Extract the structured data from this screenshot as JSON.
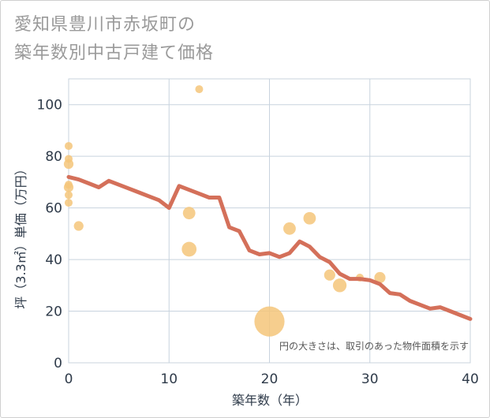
{
  "chart_data": {
    "type": "scatter+line",
    "title_lines": [
      "愛知県豊川市赤坂町の",
      "築年数別中古戸建て価格"
    ],
    "xlabel": "築年数（年）",
    "ylabel": "坪（3.3㎡）単価（万円）",
    "xlim": [
      0,
      40
    ],
    "ylim": [
      0,
      110
    ],
    "x_ticks": [
      0,
      10,
      20,
      30,
      40
    ],
    "y_ticks": [
      0,
      20,
      40,
      60,
      80,
      100
    ],
    "note": "円の大きさは、取引のあった物件面積を示す",
    "colors": {
      "bubble": "#f5c57a",
      "line": "#d4705a",
      "grid": "#c8d3de"
    },
    "bubbles": [
      {
        "x": 0,
        "y": 84,
        "s": 1
      },
      {
        "x": 0,
        "y": 79,
        "s": 1
      },
      {
        "x": 0,
        "y": 77,
        "s": 1.5
      },
      {
        "x": 0,
        "y": 69,
        "s": 1
      },
      {
        "x": 0,
        "y": 68,
        "s": 1.5
      },
      {
        "x": 0,
        "y": 65,
        "s": 1
      },
      {
        "x": 0,
        "y": 62,
        "s": 1
      },
      {
        "x": 1,
        "y": 53,
        "s": 1.5
      },
      {
        "x": 12,
        "y": 58,
        "s": 2.5
      },
      {
        "x": 12,
        "y": 44,
        "s": 3.5
      },
      {
        "x": 13,
        "y": 106,
        "s": 1
      },
      {
        "x": 20,
        "y": 16,
        "s": 8
      },
      {
        "x": 22,
        "y": 52,
        "s": 2.5
      },
      {
        "x": 24,
        "y": 56,
        "s": 2.5
      },
      {
        "x": 26,
        "y": 34,
        "s": 2
      },
      {
        "x": 27,
        "y": 30,
        "s": 3
      },
      {
        "x": 29,
        "y": 33,
        "s": 1
      },
      {
        "x": 31,
        "y": 33,
        "s": 2
      }
    ],
    "trend": {
      "x": [
        0,
        1,
        2,
        3,
        4,
        5,
        6,
        7,
        8,
        9,
        10,
        11,
        12,
        13,
        14,
        15,
        16,
        17,
        18,
        19,
        20,
        21,
        22,
        23,
        24,
        25,
        26,
        27,
        28,
        29,
        30,
        31,
        32,
        33,
        34,
        35,
        36,
        37,
        38,
        39,
        40
      ],
      "y": [
        72,
        71,
        69.5,
        68,
        70.5,
        69,
        67.5,
        66,
        64.5,
        63,
        60,
        68.5,
        67,
        65.5,
        64,
        64,
        52.5,
        51,
        43.5,
        42,
        42.5,
        41,
        42.5,
        47,
        45,
        41,
        39,
        34.5,
        32.5,
        32.5,
        32,
        30.5,
        27,
        26.5,
        24,
        22.5,
        21,
        21.5,
        20,
        18.5,
        17
      ]
    }
  }
}
